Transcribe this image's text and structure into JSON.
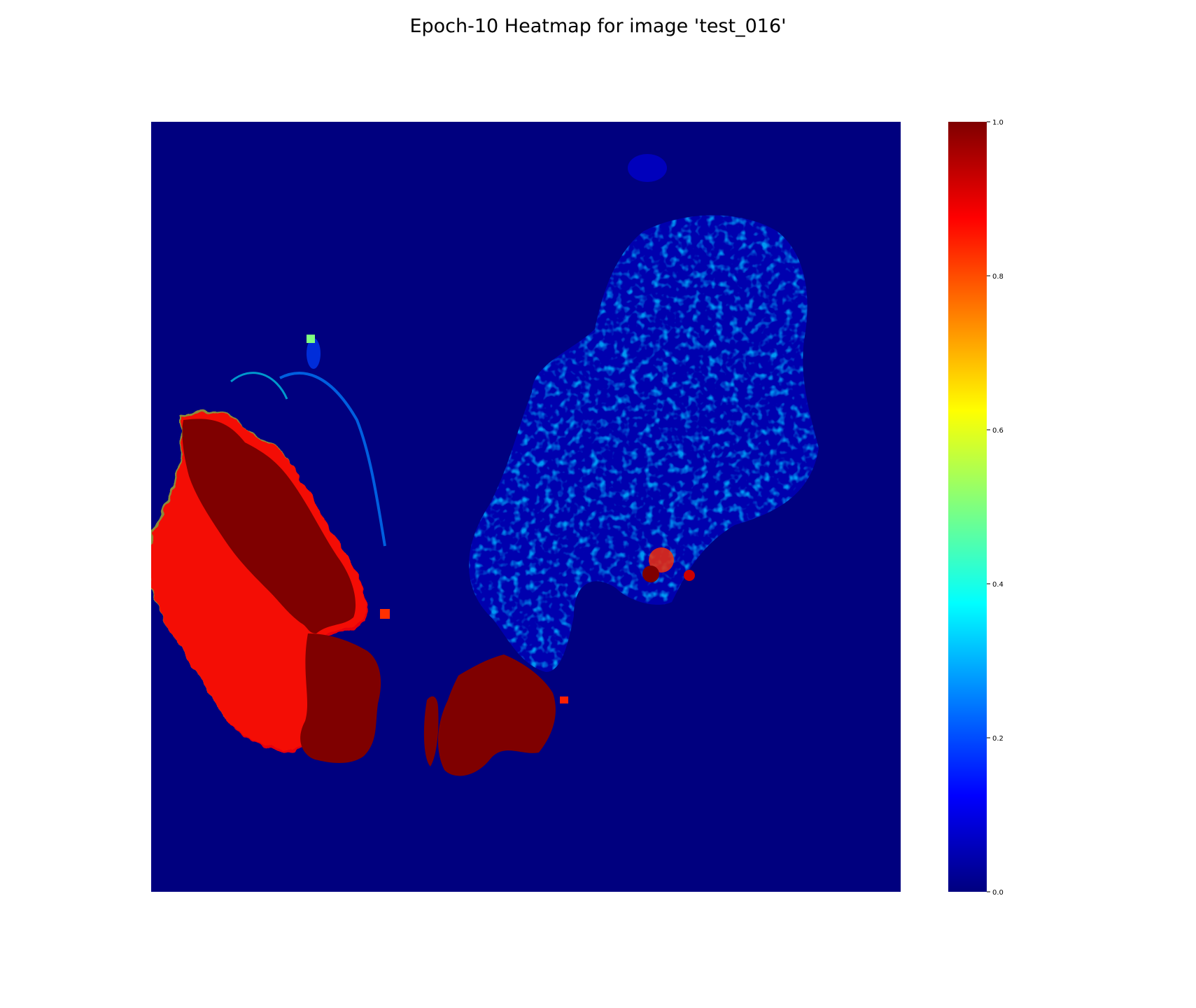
{
  "chart_data": {
    "type": "heatmap",
    "title": "Epoch-10 Heatmap for image 'test_016'",
    "xlabel": "",
    "ylabel": "",
    "axes_visible": false,
    "grid": false,
    "colormap": "jet",
    "colorbar": {
      "position": "right",
      "range": [
        0.0,
        1.0
      ],
      "ticks": [
        0.0,
        0.2,
        0.4,
        0.6,
        0.8,
        1.0
      ],
      "tick_labels": [
        "0.0",
        "0.2",
        "0.4",
        "0.6",
        "0.8",
        "1.0"
      ]
    },
    "background_value": 0.0,
    "regions": [
      {
        "description": "left elongated lobe",
        "value": 1.0
      },
      {
        "description": "lower-left rounded lobe",
        "value": 1.0
      },
      {
        "description": "lower-middle rounded lobe",
        "value": 1.0
      },
      {
        "description": "upper-right tissue fragment, speckled low scores",
        "value": 0.12
      },
      {
        "description": "small hotspot in right fragment",
        "value": 0.95
      }
    ]
  },
  "colors": {
    "jet": [
      "#00007f",
      "#0000ff",
      "#007fff",
      "#00ffff",
      "#7fff7f",
      "#ffff00",
      "#ff7f00",
      "#ff0000",
      "#7f0000"
    ]
  }
}
